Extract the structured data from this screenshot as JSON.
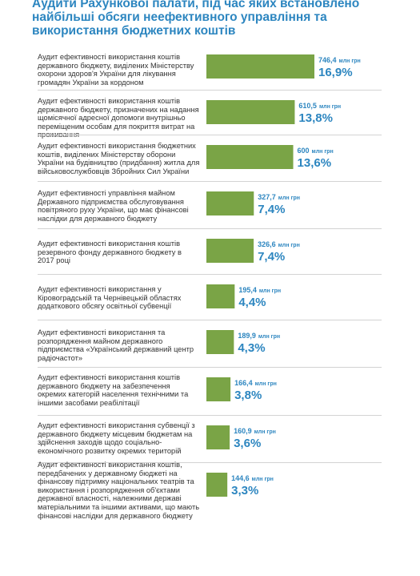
{
  "title": "Аудити Рахункової палати, під час яких встановлено найбільші обсяги неефективного управління та використання бюджетних коштів",
  "colors": {
    "bar": "#7aa446",
    "accent": "#2d86c0",
    "text": "#333333",
    "divider": "#d3d3d3"
  },
  "chart_data": {
    "type": "bar",
    "orientation": "horizontal",
    "title": "Аудити Рахункової палати, під час яких встановлено найбільші обсяги неефективного управління та використання бюджетних коштів",
    "value_unit": "млн грн",
    "categories": [
      "Аудит ефективності використання коштів державного бюджету, виділених Міністерству охорони здоров'я України для лікування громадян України за кордоном",
      "Аудит ефективності використання коштів державного бюджету, призначених на надання щомісячної адресної допомоги внутрішньо переміщеним особам для покриття витрат на проживання",
      "Аудит ефективності використання бюджетних коштів, виділених Міністерству оборони України на будівництво (придбання) житла для військовослужбовців Збройних Сил України",
      "Аудит ефективності управління майном Державного підприємства обслуговування повітряного руху України, що має фінансові наслідки для державного бюджету",
      "Аудит ефективності використання коштів резервного фонду державного бюджету в 2017 році",
      "Аудит ефективності використання у Кіровоградській та Чернівецькій областях додаткового обсягу освітньої субвенції",
      "Аудит ефективності використання та розпорядження майном державного підприємства «Український державний центр радіочастот»",
      "Аудит ефективності використання коштів державного бюджету на забезпечення окремих категорій населення технічними та іншими засобами реабілітації",
      "Аудит ефективності використання субвенції з державного бюджету місцевим бюджетам на здійснення заходів щодо соціально-економічного розвитку окремих територій",
      "Аудит ефективності використання коштів, передбачених у державному бюджеті на фінансову підтримку національних театрів та використання і розпорядження об'єктами державної власності, належними державі матеріальними та іншими активами, що мають фінансові наслідки для державного бюджету"
    ],
    "values": [
      746.4,
      610.5,
      600,
      327.7,
      326.6,
      195.4,
      189.9,
      166.4,
      160.9,
      144.6
    ],
    "value_labels": [
      "746,4 млн грн",
      "610,5 млн грн",
      "600 млн грн",
      "327,7 млн грн",
      "326,6 млн грн",
      "195,4 млн грн",
      "189,9 млн грн",
      "166,4 млн грн",
      "160,9 млн грн",
      "144,6 млн грн"
    ],
    "percent_labels": [
      "16,9%",
      "13,8%",
      "13,6%",
      "7,4%",
      "7,4%",
      "4,4%",
      "4,3%",
      "3,8%",
      "3,6%",
      "3,3%"
    ]
  }
}
